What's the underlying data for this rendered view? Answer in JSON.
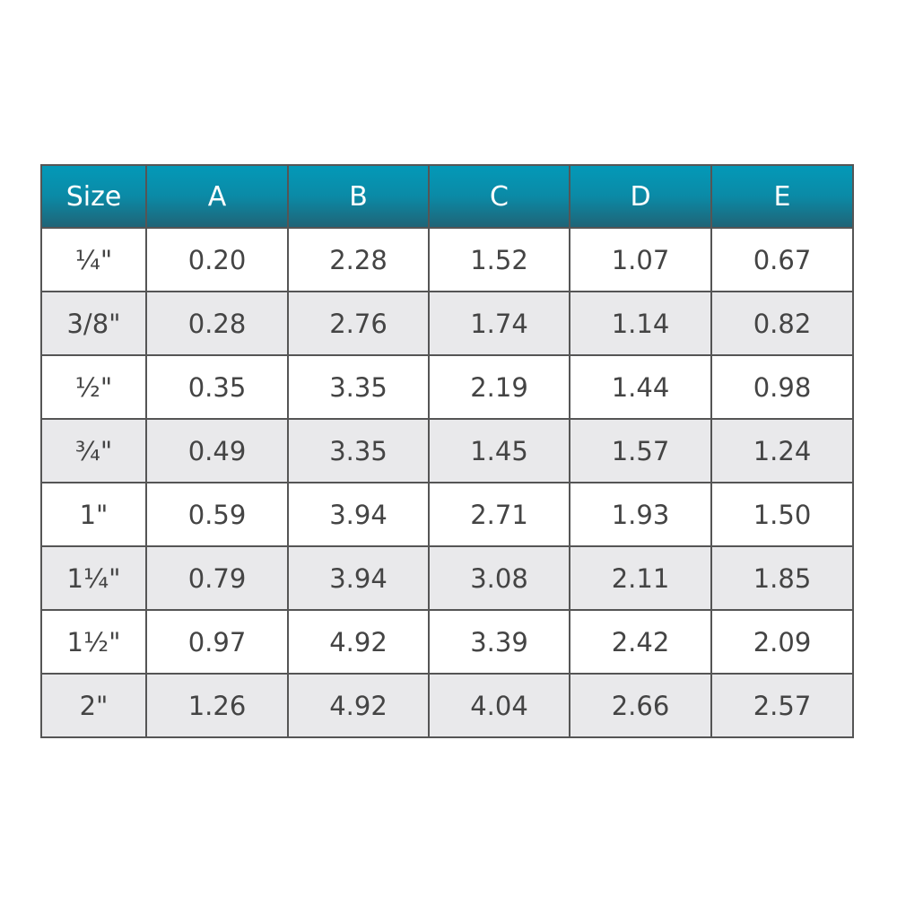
{
  "table": {
    "headers": [
      "Size",
      "A",
      "B",
      "C",
      "D",
      "E"
    ],
    "rows": [
      [
        "¼\"",
        "0.20",
        "2.28",
        "1.52",
        "1.07",
        "0.67"
      ],
      [
        "3/8\"",
        "0.28",
        "2.76",
        "1.74",
        "1.14",
        "0.82"
      ],
      [
        "½\"",
        "0.35",
        "3.35",
        "2.19",
        "1.44",
        "0.98"
      ],
      [
        "¾\"",
        "0.49",
        "3.35",
        "1.45",
        "1.57",
        "1.24"
      ],
      [
        "1\"",
        "0.59",
        "3.94",
        "2.71",
        "1.93",
        "1.50"
      ],
      [
        "1¼\"",
        "0.79",
        "3.94",
        "3.08",
        "2.11",
        "1.85"
      ],
      [
        "1½\"",
        "0.97",
        "4.92",
        "3.39",
        "2.42",
        "2.09"
      ],
      [
        "2\"",
        "1.26",
        "4.92",
        "4.04",
        "2.66",
        "2.57"
      ]
    ],
    "colors": {
      "header_top": "#0399b8",
      "header_bottom": "#1f6477",
      "alt_row": "#e9e9eb",
      "border": "#555555"
    }
  }
}
